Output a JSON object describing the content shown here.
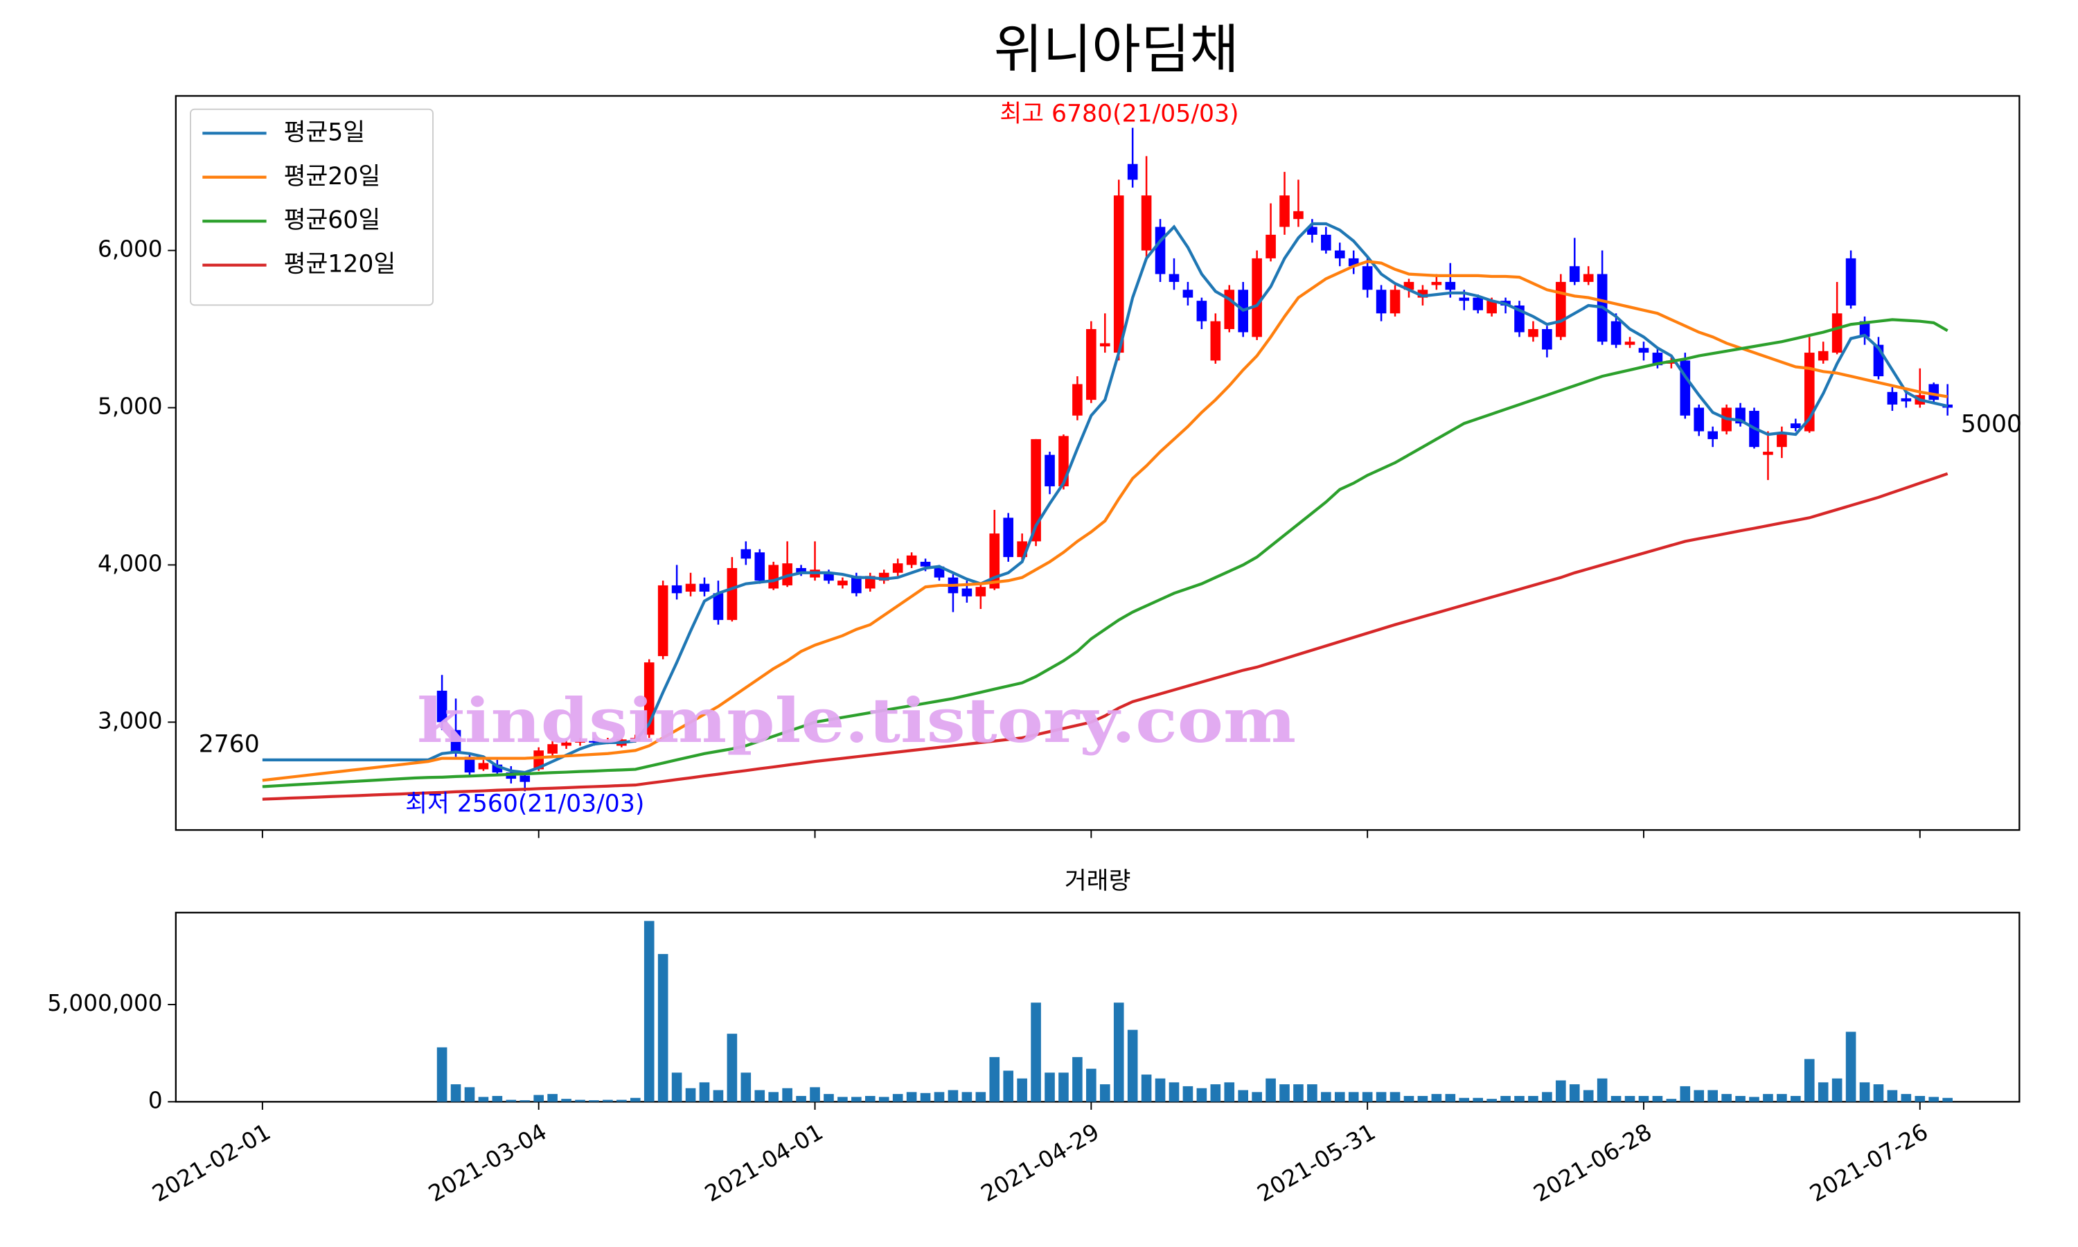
{
  "chart_data": {
    "type": "candlestick",
    "title": "위니아딤채",
    "categories": [
      "2021-02-01",
      null,
      null,
      null,
      null,
      null,
      null,
      null,
      null,
      null,
      null,
      null,
      null,
      null,
      null,
      null,
      null,
      null,
      null,
      null,
      "2021-03-04",
      null,
      null,
      null,
      null,
      null,
      null,
      null,
      null,
      null,
      null,
      null,
      null,
      null,
      null,
      null,
      null,
      null,
      null,
      null,
      "2021-04-01",
      null,
      null,
      null,
      null,
      null,
      null,
      null,
      null,
      null,
      null,
      null,
      null,
      null,
      null,
      null,
      null,
      null,
      null,
      null,
      "2021-04-29",
      null,
      null,
      null,
      null,
      null,
      null,
      null,
      null,
      null,
      null,
      null,
      null,
      null,
      null,
      null,
      null,
      null,
      null,
      null,
      "2021-05-31",
      null,
      null,
      null,
      null,
      null,
      null,
      null,
      null,
      null,
      null,
      null,
      null,
      null,
      null,
      null,
      null,
      null,
      null,
      null,
      "2021-06-28",
      null,
      null,
      null,
      null,
      null,
      null,
      null,
      null,
      null,
      null,
      null,
      null,
      null,
      null,
      null,
      null,
      null,
      null,
      null,
      "2021-07-26",
      null,
      null
    ],
    "open": [
      null,
      null,
      null,
      null,
      null,
      null,
      null,
      null,
      null,
      null,
      null,
      null,
      null,
      3200,
      2950,
      2780,
      2700,
      2730,
      2680,
      2660,
      2700,
      2800,
      2850,
      2870,
      2880,
      2870,
      2850,
      2880,
      2920,
      3420,
      3870,
      3830,
      3880,
      3820,
      3650,
      4100,
      4080,
      3850,
      3870,
      3980,
      3920,
      3950,
      3870,
      3930,
      3850,
      3900,
      3950,
      4000,
      4020,
      3990,
      3920,
      3850,
      3800,
      3850,
      4300,
      4050,
      4150,
      4700,
      4500,
      4950,
      5050,
      5390,
      5350,
      6550,
      6000,
      6150,
      5850,
      5750,
      5680,
      5300,
      5500,
      5750,
      5450,
      5950,
      6150,
      6200,
      6150,
      6100,
      6000,
      5950,
      5900,
      5750,
      5600,
      5750,
      5700,
      5780,
      5800,
      5700,
      5700,
      5600,
      5680,
      5650,
      5450,
      5500,
      5450,
      5900,
      5800,
      5850,
      5550,
      5400,
      5380,
      5350,
      5280,
      5300,
      5000,
      4850,
      4850,
      5000,
      4980,
      4700,
      4750,
      4900,
      4850,
      5300,
      5350,
      5950,
      5550,
      5400,
      5100,
      5060,
      5020,
      5150,
      5020
    ],
    "high": [
      null,
      null,
      null,
      null,
      null,
      null,
      null,
      null,
      null,
      null,
      null,
      null,
      null,
      3300,
      3150,
      2800,
      2760,
      2760,
      2720,
      2680,
      2840,
      2880,
      2890,
      2900,
      2900,
      2900,
      2900,
      2920,
      3400,
      3900,
      4000,
      3950,
      3920,
      3900,
      4050,
      4150,
      4100,
      4020,
      4150,
      4000,
      4150,
      3970,
      3920,
      3950,
      3950,
      3970,
      4040,
      4080,
      4040,
      4000,
      3940,
      3900,
      3880,
      4350,
      4330,
      4200,
      4800,
      4720,
      4830,
      5200,
      5550,
      5600,
      6450,
      6780,
      6600,
      6200,
      5950,
      5800,
      5700,
      5600,
      5780,
      5800,
      6000,
      6300,
      6500,
      6450,
      6200,
      6150,
      6050,
      6000,
      5950,
      5780,
      5780,
      5820,
      5780,
      5850,
      5920,
      5750,
      5720,
      5700,
      5700,
      5680,
      5550,
      5520,
      5850,
      6080,
      5900,
      6000,
      5600,
      5450,
      5420,
      5380,
      5320,
      5350,
      5020,
      4880,
      5020,
      5030,
      5000,
      4850,
      4880,
      4930,
      5450,
      5420,
      5800,
      6000,
      5580,
      5450,
      5130,
      5100,
      5250,
      5160,
      5150
    ],
    "low": [
      null,
      null,
      null,
      null,
      null,
      null,
      null,
      null,
      null,
      null,
      null,
      null,
      null,
      2950,
      2780,
      2650,
      2690,
      2660,
      2610,
      2560,
      2690,
      2780,
      2830,
      2850,
      2850,
      2860,
      2840,
      2870,
      2900,
      3400,
      3780,
      3800,
      3800,
      3620,
      3640,
      4000,
      3880,
      3840,
      3860,
      3930,
      3900,
      3880,
      3850,
      3800,
      3830,
      3880,
      3930,
      3980,
      3960,
      3900,
      3700,
      3760,
      3720,
      3840,
      4020,
      4020,
      4120,
      4450,
      4480,
      4920,
      5030,
      5350,
      5300,
      6400,
      5950,
      5800,
      5750,
      5650,
      5500,
      5280,
      5480,
      5450,
      5430,
      5930,
      6100,
      6150,
      6050,
      5980,
      5900,
      5850,
      5700,
      5550,
      5580,
      5700,
      5650,
      5750,
      5700,
      5620,
      5600,
      5580,
      5600,
      5450,
      5420,
      5320,
      5430,
      5780,
      5780,
      5400,
      5380,
      5380,
      5300,
      5250,
      5250,
      4930,
      4820,
      4750,
      4830,
      4880,
      4740,
      4540,
      4680,
      4850,
      4840,
      5280,
      5340,
      5630,
      5400,
      5180,
      4980,
      5000,
      5000,
      5030,
      4950
    ],
    "close": [
      null,
      null,
      null,
      null,
      null,
      null,
      null,
      null,
      null,
      null,
      null,
      null,
      null,
      3000,
      2800,
      2680,
      2740,
      2680,
      2640,
      2620,
      2820,
      2860,
      2870,
      2880,
      2870,
      2880,
      2890,
      2900,
      3380,
      3870,
      3820,
      3880,
      3830,
      3650,
      3980,
      4040,
      3900,
      4000,
      4010,
      3950,
      3970,
      3900,
      3900,
      3820,
      3930,
      3950,
      4010,
      4060,
      3990,
      3920,
      3820,
      3800,
      3860,
      4200,
      4050,
      4150,
      4800,
      4500,
      4820,
      5150,
      5500,
      5410,
      6350,
      6450,
      6350,
      5850,
      5800,
      5700,
      5550,
      5550,
      5750,
      5480,
      5950,
      6100,
      6350,
      6250,
      6100,
      6000,
      5950,
      5900,
      5750,
      5600,
      5750,
      5800,
      5750,
      5800,
      5750,
      5680,
      5620,
      5680,
      5650,
      5480,
      5500,
      5370,
      5800,
      5800,
      5850,
      5420,
      5400,
      5420,
      5350,
      5270,
      5300,
      4950,
      4850,
      4800,
      5000,
      4900,
      4750,
      4720,
      4830,
      4870,
      5350,
      5360,
      5600,
      5650,
      5450,
      5200,
      5020,
      5040,
      5080,
      5050,
      5000
    ],
    "up_color": "#ff0000",
    "down_color": "#0000ff",
    "series": [
      {
        "name": "평균5일",
        "color": "#1f77b4",
        "values": [
          2760,
          2760,
          2760,
          2760,
          2760,
          2760,
          2760,
          2760,
          2760,
          2760,
          2760,
          2760,
          2760,
          2800,
          2810,
          2800,
          2780,
          2720,
          2690,
          2680,
          2710,
          2750,
          2790,
          2830,
          2860,
          2870,
          2870,
          2880,
          2990,
          3190,
          3380,
          3580,
          3770,
          3820,
          3850,
          3880,
          3890,
          3900,
          3930,
          3950,
          3950,
          3950,
          3940,
          3920,
          3920,
          3910,
          3920,
          3950,
          3980,
          3990,
          3950,
          3910,
          3880,
          3920,
          3950,
          4020,
          4250,
          4390,
          4520,
          4740,
          4950,
          5050,
          5350,
          5700,
          5950,
          6060,
          6150,
          6020,
          5850,
          5740,
          5690,
          5620,
          5650,
          5770,
          5950,
          6080,
          6170,
          6170,
          6130,
          6060,
          5960,
          5850,
          5790,
          5750,
          5710,
          5720,
          5730,
          5730,
          5710,
          5680,
          5660,
          5620,
          5580,
          5530,
          5550,
          5600,
          5650,
          5640,
          5580,
          5500,
          5450,
          5380,
          5330,
          5200,
          5080,
          4970,
          4930,
          4920,
          4870,
          4830,
          4840,
          4830,
          4930,
          5090,
          5280,
          5440,
          5460,
          5380,
          5240,
          5100,
          5050,
          5030,
          5010
        ]
      },
      {
        "name": "평균20일",
        "color": "#ff7f0e",
        "values": [
          2630,
          2640,
          2650,
          2660,
          2670,
          2680,
          2690,
          2700,
          2710,
          2720,
          2730,
          2740,
          2750,
          2770,
          2770,
          2770,
          2770,
          2770,
          2770,
          2770,
          2775,
          2780,
          2785,
          2790,
          2795,
          2800,
          2810,
          2820,
          2850,
          2900,
          2950,
          3000,
          3050,
          3100,
          3160,
          3220,
          3280,
          3340,
          3390,
          3450,
          3490,
          3520,
          3550,
          3590,
          3620,
          3680,
          3740,
          3800,
          3860,
          3870,
          3870,
          3875,
          3880,
          3890,
          3900,
          3920,
          3970,
          4020,
          4080,
          4150,
          4210,
          4280,
          4420,
          4550,
          4630,
          4720,
          4800,
          4880,
          4970,
          5050,
          5140,
          5240,
          5330,
          5450,
          5580,
          5700,
          5760,
          5820,
          5860,
          5900,
          5930,
          5920,
          5880,
          5850,
          5845,
          5840,
          5840,
          5840,
          5840,
          5835,
          5835,
          5830,
          5790,
          5750,
          5730,
          5710,
          5700,
          5680,
          5660,
          5640,
          5620,
          5600,
          5560,
          5520,
          5480,
          5450,
          5410,
          5380,
          5350,
          5320,
          5290,
          5260,
          5250,
          5230,
          5220,
          5200,
          5180,
          5160,
          5140,
          5120,
          5100,
          5085,
          5070
        ]
      },
      {
        "name": "평균60일",
        "color": "#2ca02c",
        "values": [
          2590,
          2595,
          2600,
          2605,
          2610,
          2615,
          2620,
          2625,
          2630,
          2635,
          2640,
          2645,
          2648,
          2650,
          2654,
          2657,
          2661,
          2664,
          2668,
          2671,
          2675,
          2679,
          2682,
          2686,
          2689,
          2693,
          2696,
          2700,
          2720,
          2740,
          2760,
          2780,
          2800,
          2815,
          2830,
          2850,
          2880,
          2910,
          2940,
          2970,
          3000,
          3015,
          3030,
          3045,
          3060,
          3075,
          3090,
          3105,
          3120,
          3135,
          3150,
          3170,
          3190,
          3210,
          3230,
          3250,
          3290,
          3340,
          3390,
          3450,
          3530,
          3590,
          3650,
          3700,
          3740,
          3780,
          3820,
          3850,
          3880,
          3920,
          3960,
          4000,
          4050,
          4120,
          4190,
          4260,
          4330,
          4400,
          4480,
          4520,
          4570,
          4610,
          4650,
          4700,
          4750,
          4800,
          4850,
          4900,
          4930,
          4960,
          4990,
          5020,
          5050,
          5080,
          5110,
          5140,
          5170,
          5200,
          5220,
          5240,
          5260,
          5280,
          5295,
          5310,
          5330,
          5345,
          5360,
          5375,
          5390,
          5405,
          5420,
          5440,
          5460,
          5480,
          5505,
          5530,
          5540,
          5550,
          5560,
          5555,
          5550,
          5540,
          5490
        ]
      },
      {
        "name": "평균120일",
        "color": "#d62728",
        "values": [
          2510,
          2513,
          2517,
          2520,
          2523,
          2527,
          2530,
          2533,
          2537,
          2540,
          2543,
          2547,
          2550,
          2553,
          2557,
          2560,
          2563,
          2567,
          2570,
          2573,
          2577,
          2580,
          2583,
          2587,
          2590,
          2593,
          2597,
          2600,
          2612,
          2623,
          2635,
          2646,
          2658,
          2669,
          2681,
          2692,
          2704,
          2715,
          2727,
          2738,
          2750,
          2760,
          2770,
          2780,
          2790,
          2800,
          2810,
          2820,
          2830,
          2840,
          2850,
          2860,
          2870,
          2880,
          2890,
          2900,
          2920,
          2940,
          2960,
          2980,
          3000,
          3040,
          3090,
          3130,
          3155,
          3180,
          3205,
          3230,
          3255,
          3280,
          3305,
          3330,
          3350,
          3377,
          3404,
          3431,
          3458,
          3485,
          3512,
          3539,
          3566,
          3593,
          3620,
          3645,
          3670,
          3695,
          3720,
          3745,
          3770,
          3795,
          3820,
          3845,
          3870,
          3895,
          3920,
          3950,
          3975,
          4000,
          4025,
          4050,
          4075,
          4100,
          4125,
          4150,
          4167,
          4183,
          4200,
          4217,
          4233,
          4250,
          4267,
          4283,
          4300,
          4326,
          4352,
          4378,
          4404,
          4430,
          4460,
          4490,
          4520,
          4550,
          4580
        ]
      }
    ],
    "ylim": [
      2314,
      6983
    ],
    "yticks": [
      {
        "value": 3000,
        "label": "3,000"
      },
      {
        "value": 4000,
        "label": "4,000"
      },
      {
        "value": 5000,
        "label": "5,000"
      },
      {
        "value": 6000,
        "label": "6,000"
      }
    ],
    "legend": "upper left",
    "annotations": [
      {
        "text": "최고 6780(21/05/03)",
        "color": "#ff0000"
      },
      {
        "text": "최저 2560(21/03/03)",
        "color": "#0000ff"
      },
      {
        "text": "2760",
        "color": "#000000"
      },
      {
        "text": "5000",
        "color": "#000000"
      }
    ],
    "watermark": "kindsimple.tistory.com",
    "volume": {
      "title": "거래량",
      "color": "#1f77b4",
      "values": [
        null,
        null,
        null,
        null,
        null,
        null,
        null,
        null,
        null,
        null,
        null,
        null,
        null,
        2800000,
        900000,
        750000,
        250000,
        300000,
        100000,
        80000,
        350000,
        400000,
        150000,
        100000,
        80000,
        100000,
        100000,
        200000,
        9300000,
        7600000,
        1500000,
        700000,
        1000000,
        600000,
        3500000,
        1500000,
        600000,
        500000,
        700000,
        300000,
        750000,
        400000,
        250000,
        250000,
        300000,
        250000,
        400000,
        500000,
        450000,
        500000,
        600000,
        500000,
        500000,
        2300000,
        1600000,
        1200000,
        5100000,
        1500000,
        1500000,
        2300000,
        1700000,
        900000,
        5100000,
        3700000,
        1400000,
        1200000,
        1000000,
        800000,
        700000,
        900000,
        1000000,
        600000,
        500000,
        1200000,
        900000,
        900000,
        900000,
        500000,
        500000,
        500000,
        500000,
        500000,
        500000,
        300000,
        300000,
        400000,
        400000,
        200000,
        200000,
        150000,
        300000,
        300000,
        300000,
        500000,
        1100000,
        900000,
        600000,
        1200000,
        300000,
        300000,
        300000,
        300000,
        150000,
        800000,
        600000,
        600000,
        400000,
        300000,
        250000,
        400000,
        400000,
        300000,
        2200000,
        1000000,
        1200000,
        3600000,
        1000000,
        900000,
        600000,
        400000,
        300000,
        250000,
        200000
      ],
      "ylim": [
        0,
        9730000
      ],
      "yticks": [
        0,
        {
          "value": 5000000,
          "label": "5,000,000"
        }
      ]
    }
  }
}
